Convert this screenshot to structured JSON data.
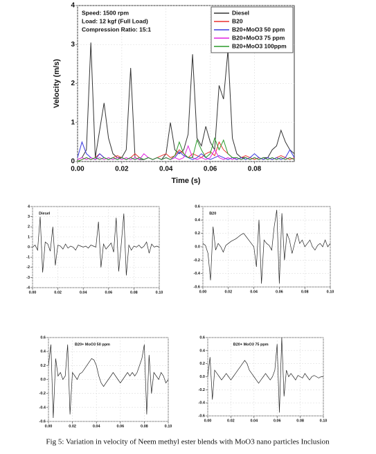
{
  "chart_data": [
    {
      "type": "line",
      "ylabel": "Velocity (m/s)",
      "xlabel": "Time (s)",
      "annotations": [
        "Speed: 1500 rpm",
        "Load: 12 kgf (Full Load)",
        "Compression Ratio: 15:1"
      ],
      "legend": "upper right",
      "grid": true,
      "xlim": [
        0,
        0.098
      ],
      "xticks": [
        {
          "value": 0,
          "label": "0.00"
        },
        0.02,
        0.04,
        0.06,
        0.08
      ],
      "ylim": [
        0,
        4
      ],
      "yticks": [
        0,
        1,
        2,
        3,
        4
      ],
      "x": [
        0,
        0.002,
        0.004,
        0.006,
        0.008,
        0.01,
        0.012,
        0.014,
        0.016,
        0.018,
        0.02,
        0.022,
        0.024,
        0.026,
        0.028,
        0.03,
        0.032,
        0.034,
        0.036,
        0.038,
        0.04,
        0.042,
        0.044,
        0.046,
        0.048,
        0.05,
        0.052,
        0.054,
        0.056,
        0.058,
        0.06,
        0.062,
        0.064,
        0.066,
        0.068,
        0.07,
        0.072,
        0.074,
        0.076,
        0.078,
        0.08,
        0.082,
        0.084,
        0.086,
        0.088,
        0.09,
        0.092,
        0.094,
        0.096,
        0.098
      ],
      "series": [
        {
          "name": "Diesel",
          "color": "#333333",
          "values": [
            0.05,
            0.1,
            0.3,
            3.05,
            0.1,
            0.8,
            1.5,
            0.6,
            0.2,
            0.1,
            0.1,
            0.3,
            2.4,
            0.1,
            0.05,
            0.05,
            0.1,
            0.05,
            0.1,
            0.05,
            0.2,
            1.0,
            0.3,
            0.2,
            0.3,
            0.7,
            2.75,
            0.6,
            0.4,
            0.9,
            0.5,
            0.3,
            1.95,
            1.6,
            2.85,
            0.6,
            0.2,
            0.1,
            0.1,
            0.05,
            0.1,
            0.05,
            0.1,
            0.1,
            0.3,
            0.4,
            0.8,
            0.5,
            0.3,
            0.2
          ]
        },
        {
          "name": "B20",
          "color": "#e8312f",
          "values": [
            0,
            0.05,
            0.1,
            0.05,
            0.1,
            0.2,
            0.1,
            0.05,
            0.1,
            0.15,
            0.1,
            0.05,
            0.1,
            0.2,
            0.1,
            0.05,
            0.1,
            0.05,
            0.1,
            0.15,
            0.2,
            0.1,
            0.15,
            0.3,
            0.2,
            0.1,
            0.2,
            0.15,
            0.1,
            0.2,
            0.25,
            0.15,
            0.5,
            0.3,
            0.2,
            0.1,
            0.05,
            0.1,
            0.15,
            0.1,
            0.05,
            0.1,
            0.05,
            0.1,
            0.05,
            0.1,
            0.15,
            0.1,
            0.05,
            0.1
          ]
        },
        {
          "name": "B20+MoO3 50 ppm",
          "color": "#3a3adf",
          "values": [
            0.1,
            0.5,
            0.2,
            0.1,
            0.05,
            0.2,
            0.1,
            0.05,
            0.1,
            0.05,
            0.1,
            0.05,
            0.1,
            0.05,
            0.1,
            0.05,
            0.1,
            0.05,
            0.1,
            0.05,
            0.1,
            0.05,
            0.1,
            0.25,
            0.15,
            0.1,
            0.05,
            0.1,
            0.2,
            0.1,
            0.05,
            0.1,
            0.15,
            0.1,
            0.05,
            0.1,
            0.05,
            0.1,
            0.05,
            0.1,
            0.2,
            0.1,
            0.05,
            0.1,
            0.05,
            0.1,
            0.05,
            0.1,
            0.3,
            0.1
          ]
        },
        {
          "name": "B20+MoO3 75 ppm",
          "color": "#e020e0",
          "values": [
            0.05,
            0.1,
            0.05,
            0.1,
            0.05,
            0.1,
            0.05,
            0.1,
            0.05,
            0.1,
            0.05,
            0.1,
            0.05,
            0.1,
            0.05,
            0.2,
            0.1,
            0.05,
            0.1,
            0.05,
            0.1,
            0.05,
            0.1,
            0.05,
            0.1,
            0.4,
            0.1,
            0.05,
            0.1,
            0.05,
            0.1,
            0.3,
            0.1,
            0.05,
            0.1,
            0.05,
            0.1,
            0.05,
            0.1,
            0.05,
            0.1,
            0.05,
            0.1,
            0.05,
            0.1,
            0.05,
            0.1,
            0.05,
            0.1,
            0.05
          ]
        },
        {
          "name": "B20+MoO3 100ppm",
          "color": "#2a9a2a",
          "values": [
            0,
            0.05,
            0.1,
            0.05,
            0.1,
            0.05,
            0.1,
            0.05,
            0.1,
            0.05,
            0.1,
            0.05,
            0.1,
            0.05,
            0.1,
            0.05,
            0.1,
            0.05,
            0.1,
            0.05,
            0.1,
            0.05,
            0.15,
            0.5,
            0.2,
            0.1,
            0.1,
            0.55,
            0.3,
            0.1,
            0.2,
            0.6,
            0.3,
            0.55,
            0.2,
            0.1,
            0.1,
            0.05,
            0.1,
            0.05,
            0.1,
            0.05,
            0.1,
            0.05,
            0.1,
            0.05,
            0.1,
            0.05,
            0.1,
            0.05
          ]
        }
      ]
    },
    {
      "type": "line",
      "title": "Diesel",
      "grid": true,
      "xlim": [
        0,
        0.1
      ],
      "xticks": [
        {
          "value": 0,
          "label": "0.00"
        },
        0.02,
        0.04,
        0.06,
        0.08,
        {
          "value": 0.1,
          "label": "0.10"
        }
      ],
      "ylim": [
        -4,
        4
      ],
      "yticks": [
        -4,
        -3,
        -2,
        -1,
        0,
        1,
        2,
        3,
        4
      ],
      "x": [
        0,
        0.002,
        0.004,
        0.006,
        0.008,
        0.01,
        0.012,
        0.014,
        0.016,
        0.018,
        0.02,
        0.022,
        0.024,
        0.026,
        0.028,
        0.03,
        0.032,
        0.034,
        0.036,
        0.038,
        0.04,
        0.042,
        0.044,
        0.046,
        0.048,
        0.05,
        0.052,
        0.054,
        0.056,
        0.058,
        0.06,
        0.062,
        0.064,
        0.066,
        0.068,
        0.07,
        0.072,
        0.074,
        0.076,
        0.078,
        0.08,
        0.082,
        0.084,
        0.086,
        0.088,
        0.09,
        0.092,
        0.094,
        0.096,
        0.098,
        0.1
      ],
      "series": [
        {
          "color": "#222222",
          "values": [
            0,
            0.2,
            -0.3,
            3.0,
            -2.5,
            0.5,
            0.3,
            -0.4,
            2.0,
            -1.8,
            0.2,
            0.1,
            -0.2,
            0.3,
            -0.1,
            0.1,
            0,
            -0.3,
            0.2,
            0.1,
            0,
            0.1,
            -0.1,
            0.2,
            0.1,
            0,
            2.5,
            -2.0,
            0.3,
            -0.2,
            0.1,
            0.4,
            -0.5,
            2.9,
            -2.4,
            0.3,
            3.3,
            -2.8,
            0.2,
            -0.3,
            0.1,
            0,
            0.2,
            -0.1,
            0.1,
            0.5,
            -0.6,
            0.3,
            0,
            0.1,
            0
          ]
        }
      ]
    },
    {
      "type": "line",
      "title": "B20",
      "grid": true,
      "xlim": [
        0,
        0.1
      ],
      "xticks": [
        {
          "value": 0,
          "label": "0.00"
        },
        0.02,
        0.04,
        0.06,
        0.08,
        {
          "value": 0.1,
          "label": "0.10"
        }
      ],
      "ylim": [
        -0.6,
        0.6
      ],
      "yticks": [
        -0.6,
        -0.4,
        -0.2,
        {
          "value": 0,
          "label": "0.0"
        },
        0.2,
        0.4,
        0.6
      ],
      "x": [
        0,
        0.002,
        0.004,
        0.006,
        0.008,
        0.01,
        0.012,
        0.014,
        0.016,
        0.018,
        0.02,
        0.022,
        0.024,
        0.026,
        0.028,
        0.03,
        0.032,
        0.034,
        0.036,
        0.038,
        0.04,
        0.042,
        0.044,
        0.046,
        0.048,
        0.05,
        0.052,
        0.054,
        0.056,
        0.058,
        0.06,
        0.062,
        0.064,
        0.066,
        0.068,
        0.07,
        0.072,
        0.074,
        0.076,
        0.078,
        0.08,
        0.082,
        0.084,
        0.086,
        0.088,
        0.09,
        0.092,
        0.094,
        0.096,
        0.098,
        0.1
      ],
      "series": [
        {
          "color": "#222222",
          "values": [
            0.05,
            0.02,
            -0.1,
            -0.5,
            0.3,
            -0.05,
            0.05,
            0,
            -0.08,
            0.02,
            0.05,
            0.08,
            0.1,
            0.12,
            0.15,
            0.18,
            0.2,
            0.15,
            0.1,
            0.05,
            0,
            -0.3,
            0.4,
            -0.55,
            0.1,
            0.05,
            0.02,
            -0.05,
            0.3,
            0.55,
            -0.55,
            0.5,
            -0.2,
            0.2,
            0.1,
            -0.1,
            0.05,
            0.2,
            0.05,
            0.1,
            0,
            0.05,
            0.1,
            0,
            -0.05,
            0.02,
            0.05,
            0,
            0.1,
            0,
            0.05
          ]
        }
      ]
    },
    {
      "type": "line",
      "title": "B20+ MoO3 50 ppm",
      "grid": true,
      "xlim": [
        0,
        0.1
      ],
      "xticks": [
        {
          "value": 0,
          "label": "0.00"
        },
        0.02,
        0.04,
        0.06,
        0.08,
        {
          "value": 0.1,
          "label": "0.10"
        }
      ],
      "ylim": [
        -0.6,
        0.6
      ],
      "yticks": [
        -0.6,
        -0.4,
        -0.2,
        {
          "value": 0,
          "label": "0.0"
        },
        0.2,
        0.4,
        0.6
      ],
      "x": [
        0,
        0.002,
        0.004,
        0.006,
        0.008,
        0.01,
        0.012,
        0.014,
        0.016,
        0.018,
        0.02,
        0.022,
        0.024,
        0.026,
        0.028,
        0.03,
        0.032,
        0.034,
        0.036,
        0.038,
        0.04,
        0.042,
        0.044,
        0.046,
        0.048,
        0.05,
        0.052,
        0.054,
        0.056,
        0.058,
        0.06,
        0.062,
        0.064,
        0.066,
        0.068,
        0.07,
        0.072,
        0.074,
        0.076,
        0.078,
        0.08,
        0.082,
        0.084,
        0.086,
        0.088,
        0.09,
        0.092,
        0.094,
        0.096,
        0.098,
        0.1
      ],
      "series": [
        {
          "color": "#222222",
          "values": [
            0.2,
            0.5,
            -0.55,
            0.3,
            0.05,
            0.1,
            0,
            0.05,
            0.5,
            -0.5,
            0.1,
            0.05,
            0,
            0.08,
            0.1,
            0.15,
            0.2,
            0.25,
            0.3,
            0.28,
            0.2,
            0.05,
            -0.05,
            -0.1,
            -0.05,
            0,
            0.05,
            0.1,
            0.05,
            0,
            -0.05,
            0,
            0.05,
            0.1,
            0.05,
            0.1,
            0.05,
            0.1,
            0.2,
            0.3,
            0.5,
            -0.5,
            0.35,
            -0.2,
            0.1,
            0.05,
            0,
            0.1,
            0.05,
            -0.05,
            0
          ]
        }
      ]
    },
    {
      "type": "line",
      "title": "B20+ MoO3 75 ppm",
      "grid": true,
      "xlim": [
        0,
        0.1
      ],
      "xticks": [
        {
          "value": 0,
          "label": "0.00"
        },
        0.02,
        0.04,
        0.06,
        0.08,
        {
          "value": 0.1,
          "label": "0.10"
        }
      ],
      "ylim": [
        -0.6,
        0.6
      ],
      "yticks": [
        -0.6,
        -0.4,
        -0.2,
        {
          "value": 0,
          "label": "0.0"
        },
        0.2,
        0.4,
        0.6
      ],
      "x": [
        0,
        0.002,
        0.004,
        0.006,
        0.008,
        0.01,
        0.012,
        0.014,
        0.016,
        0.018,
        0.02,
        0.022,
        0.024,
        0.026,
        0.028,
        0.03,
        0.032,
        0.034,
        0.036,
        0.038,
        0.04,
        0.042,
        0.044,
        0.046,
        0.048,
        0.05,
        0.052,
        0.054,
        0.056,
        0.058,
        0.06,
        0.062,
        0.064,
        0.066,
        0.068,
        0.07,
        0.072,
        0.074,
        0.076,
        0.078,
        0.08,
        0.082,
        0.084,
        0.086,
        0.088,
        0.09,
        0.092,
        0.094,
        0.096,
        0.098,
        0.1
      ],
      "series": [
        {
          "color": "#222222",
          "values": [
            0,
            0.3,
            -0.35,
            0.1,
            0.05,
            0,
            -0.05,
            0,
            0.05,
            0,
            -0.05,
            0,
            0.05,
            0.1,
            0.15,
            0.2,
            0.25,
            0.2,
            0.1,
            0.05,
            0,
            -0.05,
            -0.1,
            -0.05,
            0,
            0.05,
            0,
            -0.05,
            0,
            0.1,
            0.5,
            -0.55,
            0.6,
            -0.3,
            0.1,
            0,
            0.05,
            0,
            -0.05,
            0.02,
            0,
            -0.02,
            0.05,
            0,
            -0.05,
            0,
            0.02,
            0,
            -0.02,
            0,
            0
          ]
        }
      ]
    }
  ],
  "caption": "Fig 5: Variation in velocity of Neem methyl ester blends with MoO3 nano particles Inclusion"
}
